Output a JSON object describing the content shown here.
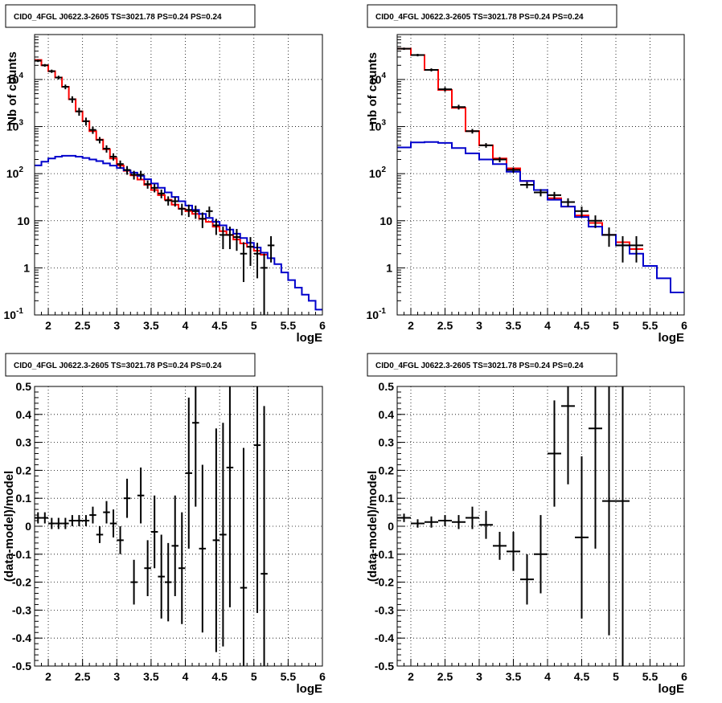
{
  "chart_data": [
    {
      "type": "step-histogram",
      "title": "CID0_4FGL J0622.3-2605 TS=3021.78 PS=0.24 PS=0.24",
      "xlabel": "logE",
      "ylabel": "Nb of counts",
      "xlim": [
        1.8,
        6.0
      ],
      "ylim": [
        0.1,
        90000
      ],
      "yscale": "log",
      "grid": true,
      "xticks": [
        "2",
        "2.5",
        "3",
        "3.5",
        "4",
        "4.5",
        "5",
        "5.5",
        "6"
      ],
      "yticks": [
        "10^-1",
        "1",
        "10",
        "10^2",
        "10^3",
        "10^4"
      ],
      "bin_edges": [
        1.8,
        1.9,
        2.0,
        2.1,
        2.2,
        2.3,
        2.4,
        2.5,
        2.6,
        2.7,
        2.8,
        2.9,
        3.0,
        3.1,
        3.2,
        3.3,
        3.4,
        3.5,
        3.6,
        3.7,
        3.8,
        3.9,
        4.0,
        4.1,
        4.2,
        4.3,
        4.4,
        4.5,
        4.6,
        4.7,
        4.8,
        4.9,
        5.0,
        5.1,
        5.2,
        5.3,
        5.4,
        5.5,
        5.6,
        5.7,
        5.8,
        5.9,
        6.0
      ],
      "series": [
        {
          "color": "#ff0000",
          "values": [
            26000,
            20000,
            15000,
            11000,
            7000,
            3800,
            2100,
            1300,
            800,
            530,
            330,
            210,
            150,
            115,
            92,
            75,
            58,
            45,
            35,
            28,
            22,
            18,
            16,
            14,
            11,
            9.5,
            7.5,
            6,
            5,
            4,
            3.3,
            2.8,
            2.3,
            1.9
          ]
        },
        {
          "color": "#0000cc",
          "values": [
            150,
            180,
            210,
            230,
            240,
            240,
            230,
            215,
            200,
            185,
            165,
            148,
            132,
            118,
            105,
            90,
            76,
            62,
            50,
            40,
            32,
            26,
            21,
            17,
            14,
            11.5,
            9.5,
            8,
            6.5,
            5.3,
            4.3,
            3.4,
            2.7,
            2.1,
            1.6,
            1.2,
            0.8,
            0.55,
            0.38,
            0.27,
            0.2,
            0.13
          ]
        }
      ],
      "points": [
        {
          "x": 1.85,
          "y": 25000,
          "dy": 1500
        },
        {
          "x": 1.95,
          "y": 20000,
          "dy": 1300
        },
        {
          "x": 2.05,
          "y": 15000,
          "dy": 1200
        },
        {
          "x": 2.15,
          "y": 11000,
          "dy": 1000
        },
        {
          "x": 2.25,
          "y": 7000,
          "dy": 800
        },
        {
          "x": 2.35,
          "y": 3800,
          "dy": 600
        },
        {
          "x": 2.45,
          "y": 2100,
          "dy": 400
        },
        {
          "x": 2.55,
          "y": 1300,
          "dy": 250
        },
        {
          "x": 2.65,
          "y": 850,
          "dy": 150
        },
        {
          "x": 2.75,
          "y": 520,
          "dy": 80
        },
        {
          "x": 2.85,
          "y": 340,
          "dy": 60
        },
        {
          "x": 2.95,
          "y": 230,
          "dy": 40
        },
        {
          "x": 3.05,
          "y": 160,
          "dy": 30
        },
        {
          "x": 3.15,
          "y": 120,
          "dy": 25
        },
        {
          "x": 3.25,
          "y": 95,
          "dy": 20
        },
        {
          "x": 3.35,
          "y": 95,
          "dy": 20
        },
        {
          "x": 3.45,
          "y": 60,
          "dy": 12
        },
        {
          "x": 3.55,
          "y": 50,
          "dy": 10
        },
        {
          "x": 3.65,
          "y": 38,
          "dy": 8
        },
        {
          "x": 3.75,
          "y": 27,
          "dy": 6
        },
        {
          "x": 3.85,
          "y": 26,
          "dy": 6
        },
        {
          "x": 3.95,
          "y": 18,
          "dy": 5
        },
        {
          "x": 4.05,
          "y": 17,
          "dy": 5
        },
        {
          "x": 4.15,
          "y": 16,
          "dy": 5
        },
        {
          "x": 4.25,
          "y": 11,
          "dy": 4
        },
        {
          "x": 4.35,
          "y": 16,
          "dy": 4
        },
        {
          "x": 4.45,
          "y": 8,
          "dy": 3
        },
        {
          "x": 4.55,
          "y": 5,
          "dy": 2.5
        },
        {
          "x": 4.65,
          "y": 5,
          "dy": 2.5
        },
        {
          "x": 4.75,
          "y": 4.5,
          "dy": 2.2
        },
        {
          "x": 4.85,
          "y": 2,
          "dy": 1.5
        },
        {
          "x": 4.95,
          "y": 2.8,
          "dy": 1.7
        },
        {
          "x": 5.05,
          "y": 2,
          "dy": 1.4
        },
        {
          "x": 5.15,
          "y": 1,
          "dy": 1
        },
        {
          "x": 5.25,
          "y": 3,
          "dy": 1.7
        }
      ]
    },
    {
      "type": "step-histogram",
      "title": "CID0_4FGL J0622.3-2605 TS=3021.78 PS=0.24 PS=0.24",
      "xlabel": "logE",
      "ylabel": "nb of counts",
      "xlim": [
        1.8,
        6.0
      ],
      "ylim": [
        0.1,
        90000
      ],
      "yscale": "log",
      "grid": true,
      "xticks": [
        "2",
        "2.5",
        "3",
        "3.5",
        "4",
        "4.5",
        "5",
        "5.5",
        "6"
      ],
      "yticks": [
        "10^-1",
        "1",
        "10",
        "10^2",
        "10^3",
        "10^4"
      ],
      "bin_edges": [
        1.8,
        2.0,
        2.2,
        2.4,
        2.6,
        2.8,
        3.0,
        3.2,
        3.4,
        3.6,
        3.8,
        4.0,
        4.2,
        4.4,
        4.6,
        4.8,
        5.0,
        5.2,
        5.4,
        5.6,
        5.8,
        6.0
      ],
      "series": [
        {
          "color": "#ff0000",
          "values": [
            45000,
            33000,
            16000,
            6000,
            2500,
            800,
            400,
            210,
            130,
            70,
            45,
            30,
            20,
            13,
            9,
            5,
            3.5,
            2.5
          ]
        },
        {
          "color": "#0000cc",
          "values": [
            360,
            460,
            470,
            450,
            350,
            270,
            200,
            160,
            110,
            70,
            45,
            28,
            20,
            12,
            7.5,
            5,
            3,
            2,
            1.1,
            0.6,
            0.3
          ]
        }
      ],
      "points": [
        {
          "x": 1.9,
          "y": 45000,
          "dy": 2500
        },
        {
          "x": 2.1,
          "y": 33000,
          "dy": 2000
        },
        {
          "x": 2.3,
          "y": 16000,
          "dy": 1200
        },
        {
          "x": 2.5,
          "y": 6200,
          "dy": 700
        },
        {
          "x": 2.7,
          "y": 2600,
          "dy": 300
        },
        {
          "x": 2.9,
          "y": 800,
          "dy": 90
        },
        {
          "x": 3.1,
          "y": 400,
          "dy": 45
        },
        {
          "x": 3.3,
          "y": 200,
          "dy": 25
        },
        {
          "x": 3.5,
          "y": 120,
          "dy": 15
        },
        {
          "x": 3.7,
          "y": 58,
          "dy": 9
        },
        {
          "x": 3.9,
          "y": 40,
          "dy": 7
        },
        {
          "x": 4.1,
          "y": 35,
          "dy": 6
        },
        {
          "x": 4.3,
          "y": 25,
          "dy": 5
        },
        {
          "x": 4.5,
          "y": 16,
          "dy": 4
        },
        {
          "x": 4.7,
          "y": 10,
          "dy": 3
        },
        {
          "x": 4.9,
          "y": 5,
          "dy": 2.2
        },
        {
          "x": 5.1,
          "y": 3,
          "dy": 1.7
        },
        {
          "x": 5.3,
          "y": 3,
          "dy": 1.7
        }
      ]
    },
    {
      "type": "scatter",
      "title": "CID0_4FGL J0622.3-2605 TS=3021.78 PS=0.24 PS=0.24",
      "xlabel": "logE",
      "ylabel": "(data-model)/model",
      "xlim": [
        1.8,
        6.0
      ],
      "ylim": [
        -0.5,
        0.5
      ],
      "grid": true,
      "xticks": [
        "2",
        "2.5",
        "3",
        "3.5",
        "4",
        "4.5",
        "5",
        "5.5",
        "6"
      ],
      "yticks": [
        "-0.5",
        "-0.4",
        "-0.3",
        "-0.2",
        "-0.1",
        "0",
        "0.1",
        "0.2",
        "0.3",
        "0.4",
        "0.5"
      ],
      "points": [
        {
          "x": 1.85,
          "y": 0.03,
          "dy": 0.02
        },
        {
          "x": 1.95,
          "y": 0.03,
          "dy": 0.02
        },
        {
          "x": 2.05,
          "y": 0.01,
          "dy": 0.02
        },
        {
          "x": 2.15,
          "y": 0.01,
          "dy": 0.02
        },
        {
          "x": 2.25,
          "y": 0.01,
          "dy": 0.02
        },
        {
          "x": 2.35,
          "y": 0.02,
          "dy": 0.02
        },
        {
          "x": 2.45,
          "y": 0.02,
          "dy": 0.02
        },
        {
          "x": 2.55,
          "y": 0.02,
          "dy": 0.02
        },
        {
          "x": 2.65,
          "y": 0.04,
          "dy": 0.03
        },
        {
          "x": 2.75,
          "y": -0.03,
          "dy": 0.03
        },
        {
          "x": 2.85,
          "y": 0.05,
          "dy": 0.04
        },
        {
          "x": 2.95,
          "y": 0.01,
          "dy": 0.05
        },
        {
          "x": 3.05,
          "y": -0.05,
          "dy": 0.05
        },
        {
          "x": 3.15,
          "y": 0.1,
          "dy": 0.07
        },
        {
          "x": 3.25,
          "y": -0.2,
          "dy": 0.08
        },
        {
          "x": 3.35,
          "y": 0.11,
          "dy": 0.1
        },
        {
          "x": 3.45,
          "y": -0.15,
          "dy": 0.1
        },
        {
          "x": 3.55,
          "y": -0.02,
          "dy": 0.13
        },
        {
          "x": 3.65,
          "y": -0.18,
          "dy": 0.15
        },
        {
          "x": 3.75,
          "y": -0.2,
          "dy": 0.14
        },
        {
          "x": 3.85,
          "y": -0.07,
          "dy": 0.18
        },
        {
          "x": 3.95,
          "y": -0.15,
          "dy": 0.2
        },
        {
          "x": 4.05,
          "y": 0.19,
          "dy": 0.27
        },
        {
          "x": 4.15,
          "y": 0.37,
          "dy": 0.3
        },
        {
          "x": 4.25,
          "y": -0.08,
          "dy": 0.3
        },
        {
          "x": 4.35,
          "y": null,
          "dy": null
        },
        {
          "x": 4.45,
          "y": -0.05,
          "dy": 0.4
        },
        {
          "x": 4.55,
          "y": -0.03,
          "dy": 0.4
        },
        {
          "x": 4.65,
          "y": 0.21,
          "dy": 0.5
        },
        {
          "x": 4.85,
          "y": -0.22,
          "dy": 0.5
        },
        {
          "x": 5.05,
          "y": 0.29,
          "dy": 0.6
        },
        {
          "x": 5.15,
          "y": -0.17,
          "dy": 0.6
        }
      ]
    },
    {
      "type": "scatter",
      "title": "CID0_4FGL J0622.3-2605 TS=3021.78 PS=0.24 PS=0.24",
      "xlabel": "logE",
      "ylabel": "(data-model)/model",
      "xlim": [
        1.8,
        6.0
      ],
      "ylim": [
        -0.5,
        0.5
      ],
      "grid": true,
      "xticks": [
        "2",
        "2.5",
        "3",
        "3.5",
        "4",
        "4.5",
        "5",
        "5.5",
        "6"
      ],
      "yticks": [
        "-0.5",
        "-0.4",
        "-0.3",
        "-0.2",
        "-0.1",
        "0",
        "0.1",
        "0.2",
        "0.3",
        "0.4",
        "0.5"
      ],
      "points": [
        {
          "x": 1.9,
          "y": 0.03,
          "dy": 0.015
        },
        {
          "x": 2.1,
          "y": 0.01,
          "dy": 0.015
        },
        {
          "x": 2.3,
          "y": 0.015,
          "dy": 0.02
        },
        {
          "x": 2.5,
          "y": 0.02,
          "dy": 0.02
        },
        {
          "x": 2.7,
          "y": 0.015,
          "dy": 0.025
        },
        {
          "x": 2.9,
          "y": 0.03,
          "dy": 0.04
        },
        {
          "x": 3.1,
          "y": 0.005,
          "dy": 0.05
        },
        {
          "x": 3.3,
          "y": -0.07,
          "dy": 0.05
        },
        {
          "x": 3.5,
          "y": -0.09,
          "dy": 0.07
        },
        {
          "x": 3.7,
          "y": -0.19,
          "dy": 0.09
        },
        {
          "x": 3.9,
          "y": -0.1,
          "dy": 0.14
        },
        {
          "x": 4.1,
          "y": 0.26,
          "dy": 0.19
        },
        {
          "x": 4.3,
          "y": 0.43,
          "dy": 0.28
        },
        {
          "x": 4.5,
          "y": -0.04,
          "dy": 0.29
        },
        {
          "x": 4.7,
          "y": 0.35,
          "dy": 0.43
        },
        {
          "x": 4.9,
          "y": 0.09,
          "dy": 0.48
        },
        {
          "x": 5.1,
          "y": 0.09,
          "dy": 0.6
        }
      ]
    }
  ]
}
